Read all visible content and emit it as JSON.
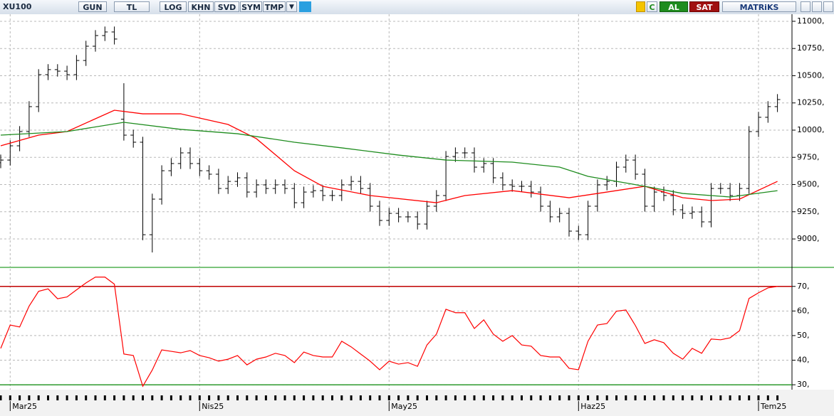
{
  "toolbar": {
    "symbol": "XU100",
    "buttons": [
      "GUN",
      "TL",
      "LOG",
      "KHN",
      "SVD",
      "SYM",
      "TMP"
    ],
    "actions": [
      "C",
      "AL",
      "SAT"
    ],
    "brand": "MATRiKS"
  },
  "chart_data": [
    {
      "type": "ohlc",
      "color": "#000000",
      "grid": true,
      "categories": [
        null,
        "Mar25",
        null,
        null,
        null,
        null,
        null,
        null,
        null,
        null,
        null,
        null,
        null,
        null,
        null,
        null,
        null,
        null,
        null,
        null,
        null,
        "Nis25",
        null,
        null,
        null,
        null,
        null,
        null,
        null,
        null,
        null,
        null,
        null,
        null,
        null,
        null,
        null,
        null,
        null,
        null,
        null,
        "May25",
        null,
        null,
        null,
        null,
        null,
        null,
        null,
        null,
        null,
        null,
        null,
        null,
        null,
        null,
        null,
        null,
        null,
        null,
        null,
        "Haz25",
        null,
        null,
        null,
        null,
        null,
        null,
        null,
        null,
        null,
        null,
        null,
        null,
        null,
        null,
        null,
        null,
        null,
        null,
        "Tem25",
        null,
        null
      ],
      "open": [
        9700,
        9725,
        9856,
        9987,
        10216,
        10510,
        10556,
        10542,
        10510,
        10640,
        10771,
        10869,
        10902,
        10100,
        9954,
        9889,
        9039,
        9366,
        9627,
        9693,
        9791,
        9693,
        9627,
        9595,
        9464,
        9529,
        9562,
        9431,
        9497,
        9464,
        9497,
        9464,
        9333,
        9431,
        9444,
        9399,
        9399,
        9497,
        9529,
        9464,
        9301,
        9170,
        9235,
        9203,
        9203,
        9137,
        9301,
        9399,
        9758,
        9791,
        9791,
        9660,
        9693,
        9562,
        9497,
        9484,
        9484,
        9431,
        9301,
        9203,
        9235,
        9072,
        9039,
        9301,
        9497,
        9529,
        9660,
        9725,
        9595,
        9301,
        9431,
        9399,
        9268,
        9235,
        9248,
        9157,
        9464,
        9464,
        9399,
        9464,
        9987,
        10118,
        10216
      ],
      "high": [
        9775,
        9906,
        10037,
        10266,
        10560,
        10606,
        10606,
        10592,
        10690,
        10821,
        10919,
        10952,
        10952,
        10431,
        10004,
        9939,
        9416,
        9677,
        9743,
        9841,
        9841,
        9743,
        9677,
        9645,
        9579,
        9612,
        9612,
        9547,
        9547,
        9547,
        9547,
        9514,
        9481,
        9494,
        9494,
        9449,
        9547,
        9579,
        9579,
        9514,
        9351,
        9285,
        9285,
        9253,
        9253,
        9351,
        9449,
        9808,
        9841,
        9841,
        9841,
        9743,
        9743,
        9612,
        9547,
        9534,
        9534,
        9481,
        9351,
        9285,
        9285,
        9122,
        9351,
        9547,
        9579,
        9710,
        9775,
        9775,
        9645,
        9481,
        9481,
        9449,
        9318,
        9298,
        9298,
        9514,
        9514,
        9514,
        9514,
        10037,
        10168,
        10266,
        10331
      ],
      "low": [
        9650,
        9675,
        9806,
        9937,
        10166,
        10460,
        10492,
        10460,
        10460,
        10590,
        10721,
        10819,
        10787,
        9904,
        9839,
        8989,
        8876,
        9316,
        9577,
        9643,
        9643,
        9577,
        9545,
        9414,
        9414,
        9479,
        9381,
        9381,
        9414,
        9414,
        9414,
        9283,
        9283,
        9381,
        9349,
        9349,
        9349,
        9447,
        9414,
        9251,
        9120,
        9120,
        9153,
        9153,
        9087,
        9087,
        9251,
        9349,
        9708,
        9741,
        9610,
        9610,
        9512,
        9447,
        9434,
        9434,
        9381,
        9251,
        9153,
        9153,
        9022,
        8989,
        8989,
        9251,
        9447,
        9479,
        9610,
        9545,
        9251,
        9251,
        9349,
        9218,
        9185,
        9185,
        9107,
        9107,
        9414,
        9349,
        9349,
        9414,
        9937,
        10068,
        10166
      ],
      "close": [
        9725,
        9856,
        9987,
        10216,
        10510,
        10556,
        10542,
        10510,
        10640,
        10771,
        10869,
        10902,
        10837,
        9954,
        9889,
        9039,
        9366,
        9627,
        9693,
        9791,
        9693,
        9627,
        9595,
        9464,
        9529,
        9562,
        9431,
        9497,
        9464,
        9497,
        9464,
        9333,
        9431,
        9444,
        9399,
        9399,
        9497,
        9529,
        9464,
        9301,
        9170,
        9235,
        9203,
        9203,
        9137,
        9301,
        9399,
        9758,
        9791,
        9791,
        9660,
        9693,
        9562,
        9497,
        9484,
        9484,
        9431,
        9301,
        9203,
        9235,
        9072,
        9039,
        9301,
        9497,
        9529,
        9660,
        9725,
        9595,
        9301,
        9431,
        9399,
        9268,
        9235,
        9248,
        9157,
        9464,
        9464,
        9399,
        9464,
        9987,
        10118,
        10216,
        10281
      ],
      "overlays": [
        {
          "color": "#ff0000",
          "x": [
            0,
            4,
            7,
            12,
            15,
            19,
            24,
            27,
            31,
            34,
            39,
            46,
            49,
            54,
            60,
            64,
            68,
            72,
            75,
            78,
            82
          ],
          "values": [
            9856,
            9954,
            9987,
            10183,
            10150,
            10150,
            10052,
            9921,
            9627,
            9484,
            9399,
            9333,
            9399,
            9444,
            9379,
            9431,
            9484,
            9379,
            9353,
            9366,
            9529
          ]
        },
        {
          "color": "#1e8c1e",
          "x": [
            0,
            7,
            13,
            19,
            25,
            31,
            36,
            42,
            47,
            54,
            59,
            62,
            68,
            72,
            77,
            82
          ],
          "values": [
            9954,
            9987,
            10072,
            10007,
            9967,
            9889,
            9837,
            9771,
            9725,
            9706,
            9660,
            9575,
            9484,
            9418,
            9386,
            9444
          ]
        }
      ],
      "ylim": [
        8765,
        11052
      ],
      "yticks": [
        {
          "value": 9000,
          "label": "9000,"
        },
        {
          "value": 9250,
          "label": "9250,"
        },
        {
          "value": 9500,
          "label": "9500,"
        },
        {
          "value": 9750,
          "label": "9750,"
        },
        {
          "value": 10000,
          "label": "10000,"
        },
        {
          "value": 10250,
          "label": "10250,"
        },
        {
          "value": 10500,
          "label": "10500,"
        },
        {
          "value": 10750,
          "label": "10750,"
        },
        {
          "value": 11000,
          "label": "11000,"
        }
      ]
    },
    {
      "type": "line",
      "color": "#ff0000",
      "grid": true,
      "values": [
        44.8,
        54.3,
        53.5,
        62,
        68,
        69,
        65,
        65.7,
        68.6,
        71.4,
        73.8,
        73.8,
        70.9,
        42.5,
        41.9,
        29.4,
        36,
        44.2,
        43.6,
        43,
        43.9,
        41.9,
        41,
        39.6,
        40.4,
        41.9,
        38.1,
        40.4,
        41.3,
        42.8,
        41.9,
        39,
        43.3,
        41.9,
        41.3,
        41.3,
        47.7,
        45.4,
        42.5,
        39.6,
        36.1,
        39.6,
        38.4,
        39,
        37.5,
        46.2,
        50.6,
        60.7,
        59.3,
        59.3,
        52.9,
        56.4,
        50.6,
        47.7,
        50,
        46.2,
        45.7,
        41.9,
        41.3,
        41.3,
        36.7,
        36.1,
        47.7,
        54.3,
        54.9,
        59.9,
        60.4,
        54.1,
        46.8,
        48.3,
        47.1,
        42.8,
        40.4,
        44.8,
        42.8,
        48.6,
        48.3,
        49.1,
        52,
        65.1,
        67.4,
        69.4,
        70
      ],
      "levels": [
        {
          "value": 70,
          "color": "#c00000"
        },
        {
          "value": 30,
          "color": "#2e9a2e"
        }
      ],
      "ylim": [
        28,
        76
      ],
      "yticks": [
        {
          "value": 30,
          "label": "30,"
        },
        {
          "value": 40,
          "label": "40,"
        },
        {
          "value": 50,
          "label": "50,"
        },
        {
          "value": 60,
          "label": "60,"
        },
        {
          "value": 70,
          "label": "70,"
        }
      ]
    }
  ]
}
